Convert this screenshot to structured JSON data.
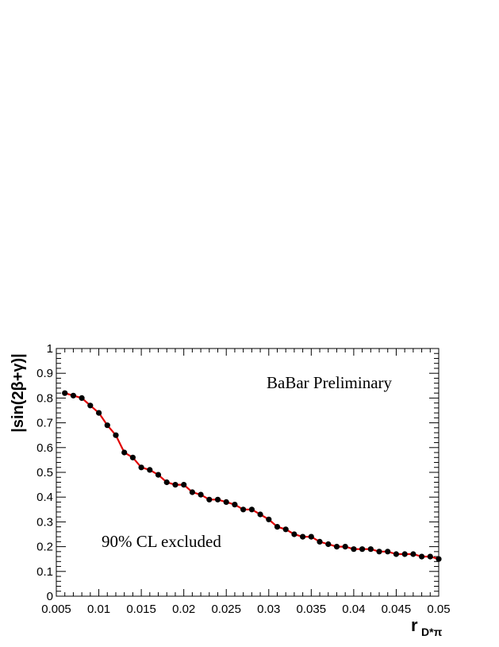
{
  "chart_data": {
    "type": "line",
    "ylabel": "|sin(2β+γ)|",
    "xlabel_main": "r",
    "xlabel_sub": "D*π",
    "xlim": [
      0.005,
      0.05
    ],
    "ylim": [
      0,
      1
    ],
    "grid": false,
    "xticks": [
      "0.005",
      "0.01",
      "0.015",
      "0.02",
      "0.025",
      "0.03",
      "0.035",
      "0.04",
      "0.045",
      "0.05"
    ],
    "yticks": [
      "0",
      "0.1",
      "0.2",
      "0.3",
      "0.4",
      "0.5",
      "0.6",
      "0.7",
      "0.8",
      "0.9",
      "1"
    ],
    "annotations": [
      "BaBar Preliminary",
      "90% CL excluded"
    ],
    "line_color": "#e00000",
    "marker_color": "#000000",
    "series": [
      {
        "x": [
          0.006,
          0.007,
          0.008,
          0.009,
          0.01,
          0.011,
          0.012,
          0.013,
          0.014,
          0.015,
          0.016,
          0.017,
          0.018,
          0.019,
          0.02,
          0.021,
          0.022,
          0.023,
          0.024,
          0.025,
          0.026,
          0.027,
          0.028,
          0.029,
          0.03,
          0.031,
          0.032,
          0.033,
          0.034,
          0.035,
          0.036,
          0.037,
          0.038,
          0.039,
          0.04,
          0.041,
          0.042,
          0.043,
          0.044,
          0.045,
          0.046,
          0.047,
          0.048,
          0.049,
          0.05
        ],
        "y": [
          0.82,
          0.81,
          0.8,
          0.77,
          0.74,
          0.69,
          0.65,
          0.58,
          0.56,
          0.52,
          0.51,
          0.49,
          0.46,
          0.45,
          0.45,
          0.42,
          0.41,
          0.39,
          0.39,
          0.38,
          0.37,
          0.35,
          0.35,
          0.33,
          0.31,
          0.28,
          0.27,
          0.25,
          0.24,
          0.24,
          0.22,
          0.21,
          0.2,
          0.2,
          0.19,
          0.19,
          0.19,
          0.18,
          0.18,
          0.17,
          0.17,
          0.17,
          0.16,
          0.16,
          0.15
        ]
      }
    ]
  }
}
